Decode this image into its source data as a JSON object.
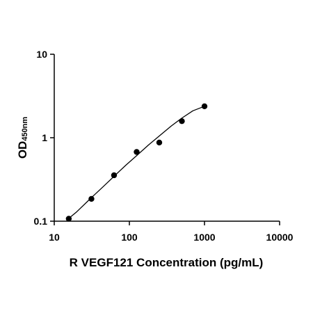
{
  "chart_data": {
    "type": "scatter",
    "title": "",
    "xlabel": "R VEGF121 Concentration (pg/mL)",
    "ylabel": "OD",
    "ylabel_subscript": "450nm",
    "xscale": "log",
    "yscale": "log",
    "xlim": [
      10,
      10000
    ],
    "ylim": [
      0.1,
      10
    ],
    "x_ticks": [
      10,
      100,
      1000,
      10000
    ],
    "x_tick_labels": [
      "10",
      "100",
      "1000",
      "10000"
    ],
    "y_ticks": [
      0.1,
      1,
      10
    ],
    "y_tick_labels": [
      "0.1",
      "1",
      "10"
    ],
    "grid": false,
    "legend": "none",
    "series": [
      {
        "x": [
          15.6,
          31.25,
          62.5,
          125,
          250,
          500,
          1000
        ],
        "y": [
          0.107,
          0.185,
          0.355,
          0.675,
          0.875,
          1.58,
          2.38
        ]
      }
    ],
    "fit_curve": {
      "x": [
        15.6,
        20,
        30,
        45,
        62.5,
        90,
        125,
        180,
        250,
        360,
        500,
        700,
        1000
      ],
      "y": [
        0.108,
        0.13,
        0.185,
        0.26,
        0.345,
        0.47,
        0.61,
        0.82,
        1.05,
        1.38,
        1.72,
        2.1,
        2.38
      ]
    },
    "colors": {
      "axis": "#000000",
      "marker": "#000000",
      "curve": "#000000"
    }
  }
}
